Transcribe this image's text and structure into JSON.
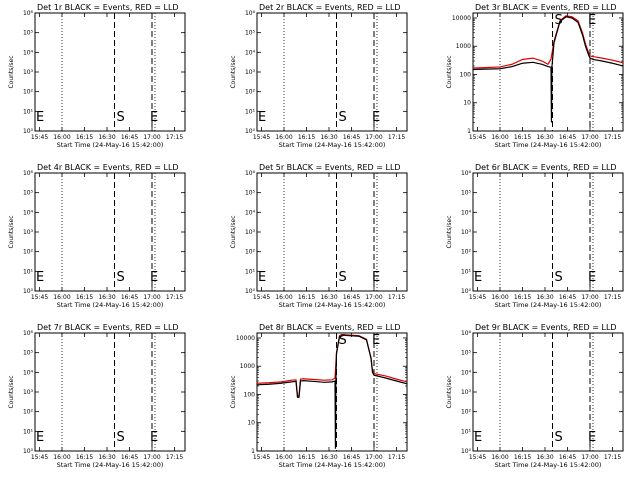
{
  "x_ticks": [
    "15:45",
    "16:00",
    "16:15",
    "16:30",
    "16:45",
    "17:00",
    "17:15"
  ],
  "y_tick_labels": [
    "10⁰",
    "10¹",
    "10²",
    "10³",
    "10⁴",
    "10⁵",
    "10⁶"
  ],
  "y_tick_labels_linear": [
    "1",
    "10",
    "100",
    "1000",
    "10000"
  ],
  "colors": {
    "events": "#000000",
    "lld": "#e00000"
  },
  "chart_data": [
    {
      "type": "line",
      "title": "Det 1r BLACK = Events, RED = LLD",
      "xlabel": "Start Time (24-May-16 15:42:00)",
      "ylabel": "Counts/sec",
      "xlim": [
        "15:42",
        "17:22"
      ],
      "ylim": [
        1,
        1000000
      ],
      "yscale": "log",
      "y_labels": "power",
      "s_marker": "16:35",
      "e_marker": "17:00",
      "dotted_lines": [
        "16:00",
        "17:02"
      ],
      "series": []
    },
    {
      "type": "line",
      "title": "Det 2r BLACK = Events, RED = LLD",
      "xlabel": "Start Time (24-May-16 15:42:00)",
      "ylabel": "Counts/sec",
      "xlim": [
        "15:42",
        "17:22"
      ],
      "ylim": [
        1,
        1000000
      ],
      "yscale": "log",
      "y_labels": "power",
      "s_marker": "16:35",
      "e_marker": "17:00",
      "dotted_lines": [
        "16:00",
        "17:02"
      ],
      "series": []
    },
    {
      "type": "line",
      "title": "Det 3r BLACK = Events, RED = LLD",
      "xlabel": "Start Time (24-May-16 15:42:00)",
      "ylabel": "Counts/sec",
      "xlim": [
        "15:42",
        "17:22"
      ],
      "ylim": [
        1,
        15000
      ],
      "yscale": "log",
      "y_labels": "linear",
      "s_marker": "16:35",
      "e_marker": "17:00",
      "dotted_lines": [
        "16:00",
        "17:02"
      ],
      "series": [
        {
          "color": "red",
          "x": [
            "15:42",
            "15:50",
            "16:00",
            "16:08",
            "16:15",
            "16:22",
            "16:28",
            "16:32",
            "16:34",
            "16:36",
            "16:40",
            "16:44",
            "16:48",
            "16:52",
            "16:55",
            "16:57",
            "16:59",
            "17:00",
            "17:02",
            "17:08",
            "17:15",
            "17:22"
          ],
          "y": [
            170,
            175,
            185,
            230,
            340,
            380,
            300,
            230,
            350,
            1500,
            8000,
            12000,
            11000,
            8000,
            3000,
            1200,
            600,
            450,
            430,
            380,
            320,
            260
          ]
        },
        {
          "color": "black",
          "x": [
            "15:42",
            "15:50",
            "16:00",
            "16:08",
            "16:15",
            "16:22",
            "16:28",
            "16:32",
            "16:34",
            "16:34.3",
            "16:34.6",
            "16:36",
            "16:40",
            "16:44",
            "16:48",
            "16:52",
            "16:55",
            "16:57",
            "16:59",
            "17:00",
            "17:02",
            "17:08",
            "17:15",
            "17:22"
          ],
          "y": [
            150,
            155,
            160,
            190,
            250,
            270,
            230,
            190,
            180,
            2,
            180,
            1300,
            7500,
            11000,
            10000,
            7000,
            2500,
            1000,
            500,
            380,
            340,
            300,
            250,
            200
          ]
        }
      ]
    },
    {
      "type": "line",
      "title": "Det 4r BLACK = Events, RED = LLD",
      "xlabel": "Start Time (24-May-16 15:42:00)",
      "ylabel": "Counts/sec",
      "xlim": [
        "15:42",
        "17:22"
      ],
      "ylim": [
        1,
        1000000
      ],
      "yscale": "log",
      "y_labels": "power",
      "s_marker": "16:35",
      "e_marker": "17:00",
      "dotted_lines": [
        "16:00",
        "17:02"
      ],
      "series": []
    },
    {
      "type": "line",
      "title": "Det 5r BLACK = Events, RED = LLD",
      "xlabel": "Start Time (24-May-16 15:42:00)",
      "ylabel": "Counts/sec",
      "xlim": [
        "15:42",
        "17:22"
      ],
      "ylim": [
        1,
        1000000
      ],
      "yscale": "log",
      "y_labels": "power",
      "s_marker": "16:35",
      "e_marker": "17:00",
      "dotted_lines": [
        "16:00",
        "17:02"
      ],
      "series": []
    },
    {
      "type": "line",
      "title": "Det 6r BLACK = Events, RED = LLD",
      "xlabel": "Start Time (24-May-16 15:42:00)",
      "ylabel": "Counts/sec",
      "xlim": [
        "15:42",
        "17:22"
      ],
      "ylim": [
        1,
        1000000
      ],
      "yscale": "log",
      "y_labels": "power",
      "s_marker": "16:35",
      "e_marker": "17:00",
      "dotted_lines": [
        "16:00",
        "17:02"
      ],
      "series": []
    },
    {
      "type": "line",
      "title": "Det 7r BLACK = Events, RED = LLD",
      "xlabel": "Start Time (24-May-16 15:42:00)",
      "ylabel": "Counts/sec",
      "xlim": [
        "15:42",
        "17:22"
      ],
      "ylim": [
        1,
        1000000
      ],
      "yscale": "log",
      "y_labels": "power",
      "s_marker": "16:35",
      "e_marker": "17:00",
      "dotted_lines": [
        "16:00",
        "17:02"
      ],
      "series": []
    },
    {
      "type": "line",
      "title": "Det 8r BLACK = Events, RED = LLD",
      "xlabel": "Start Time (24-May-16 15:42:00)",
      "ylabel": "Counts/sec",
      "xlim": [
        "15:42",
        "17:22"
      ],
      "ylim": [
        1,
        15000
      ],
      "yscale": "log",
      "y_labels": "linear",
      "s_marker": "16:35",
      "e_marker": "17:00",
      "dotted_lines": [
        "16:00",
        "17:02"
      ],
      "series": [
        {
          "color": "red",
          "x": [
            "15:42",
            "15:50",
            "15:58",
            "16:05",
            "16:08",
            "16:09",
            "16:10",
            "16:11",
            "16:13",
            "16:20",
            "16:27",
            "16:32",
            "16:34",
            "16:35",
            "16:37",
            "16:40",
            "16:45",
            "16:50",
            "16:55",
            "16:58",
            "16:59",
            "17:00",
            "17:08",
            "17:15",
            "17:22"
          ],
          "y": [
            250,
            260,
            280,
            320,
            330,
            90,
            90,
            350,
            360,
            340,
            320,
            330,
            380,
            3000,
            12000,
            13000,
            12500,
            12000,
            9000,
            2000,
            700,
            550,
            450,
            350,
            280
          ]
        },
        {
          "color": "black",
          "x": [
            "15:42",
            "15:50",
            "15:58",
            "16:05",
            "16:08",
            "16:09",
            "16:10",
            "16:11",
            "16:13",
            "16:20",
            "16:27",
            "16:32",
            "16:34",
            "16:34.3",
            "16:34.6",
            "16:35",
            "16:37",
            "16:40",
            "16:45",
            "16:50",
            "16:55",
            "16:58",
            "16:59",
            "17:00",
            "17:08",
            "17:15",
            "17:22"
          ],
          "y": [
            220,
            230,
            250,
            280,
            290,
            80,
            80,
            300,
            310,
            290,
            270,
            280,
            300,
            1.2,
            300,
            2800,
            11000,
            12500,
            12000,
            11500,
            8500,
            1900,
            600,
            480,
            380,
            300,
            240
          ]
        }
      ]
    },
    {
      "type": "line",
      "title": "Det 9r BLACK = Events, RED = LLD",
      "xlabel": "Start Time (24-May-16 15:42:00)",
      "ylabel": "Counts/sec",
      "xlim": [
        "15:42",
        "17:22"
      ],
      "ylim": [
        1,
        1000000
      ],
      "yscale": "log",
      "y_labels": "power",
      "s_marker": "16:35",
      "e_marker": "17:00",
      "dotted_lines": [
        "16:00",
        "17:02"
      ],
      "series": []
    }
  ]
}
